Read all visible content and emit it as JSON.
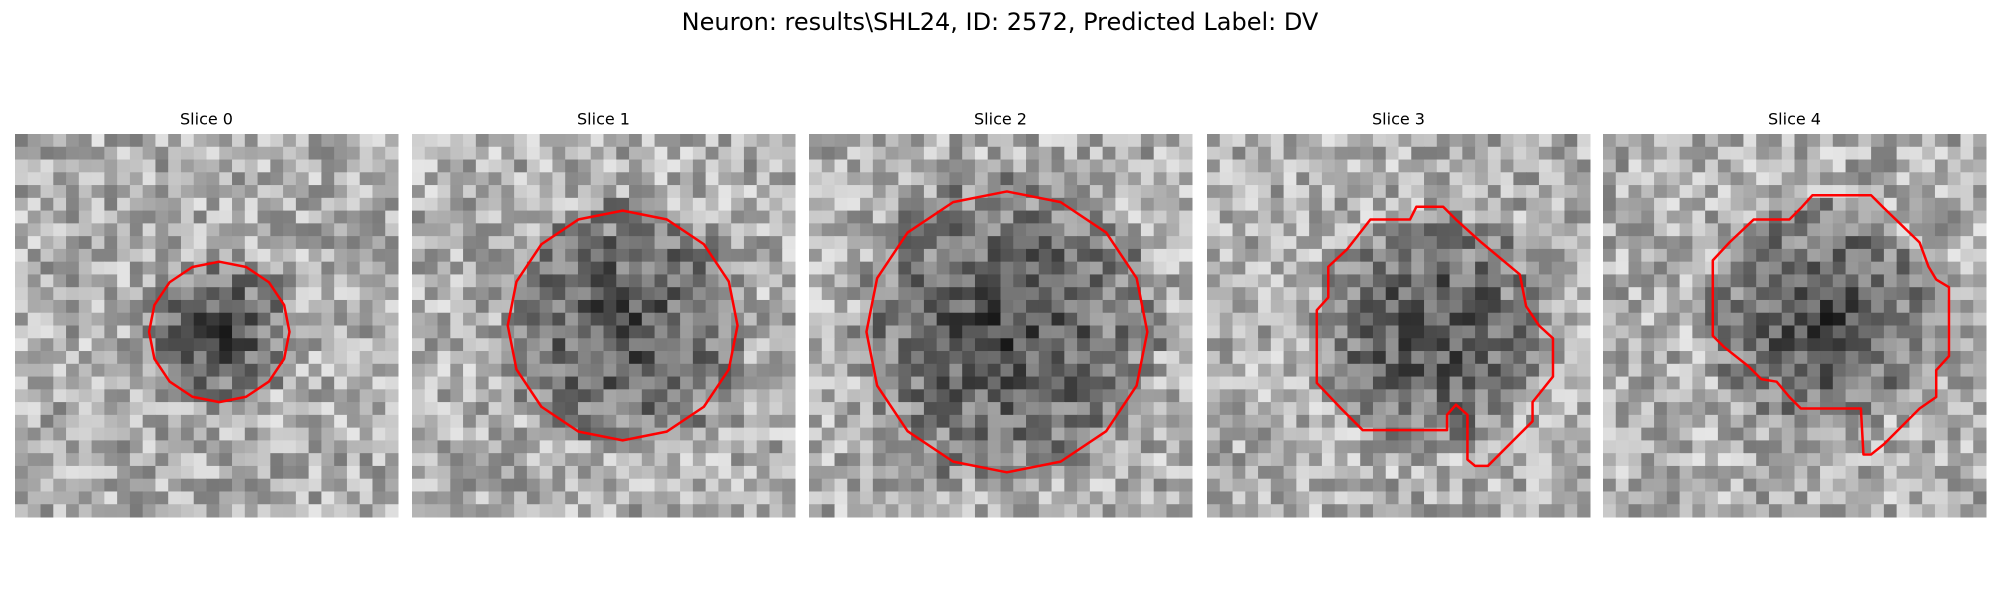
{
  "title": "Neuron: results\\SHL24, ID: 2572, Predicted Label: DV",
  "panels": [
    {
      "title": "Slice 0"
    },
    {
      "title": "Slice 1"
    },
    {
      "title": "Slice 2"
    },
    {
      "title": "Slice 3"
    },
    {
      "title": "Slice 4"
    }
  ]
}
